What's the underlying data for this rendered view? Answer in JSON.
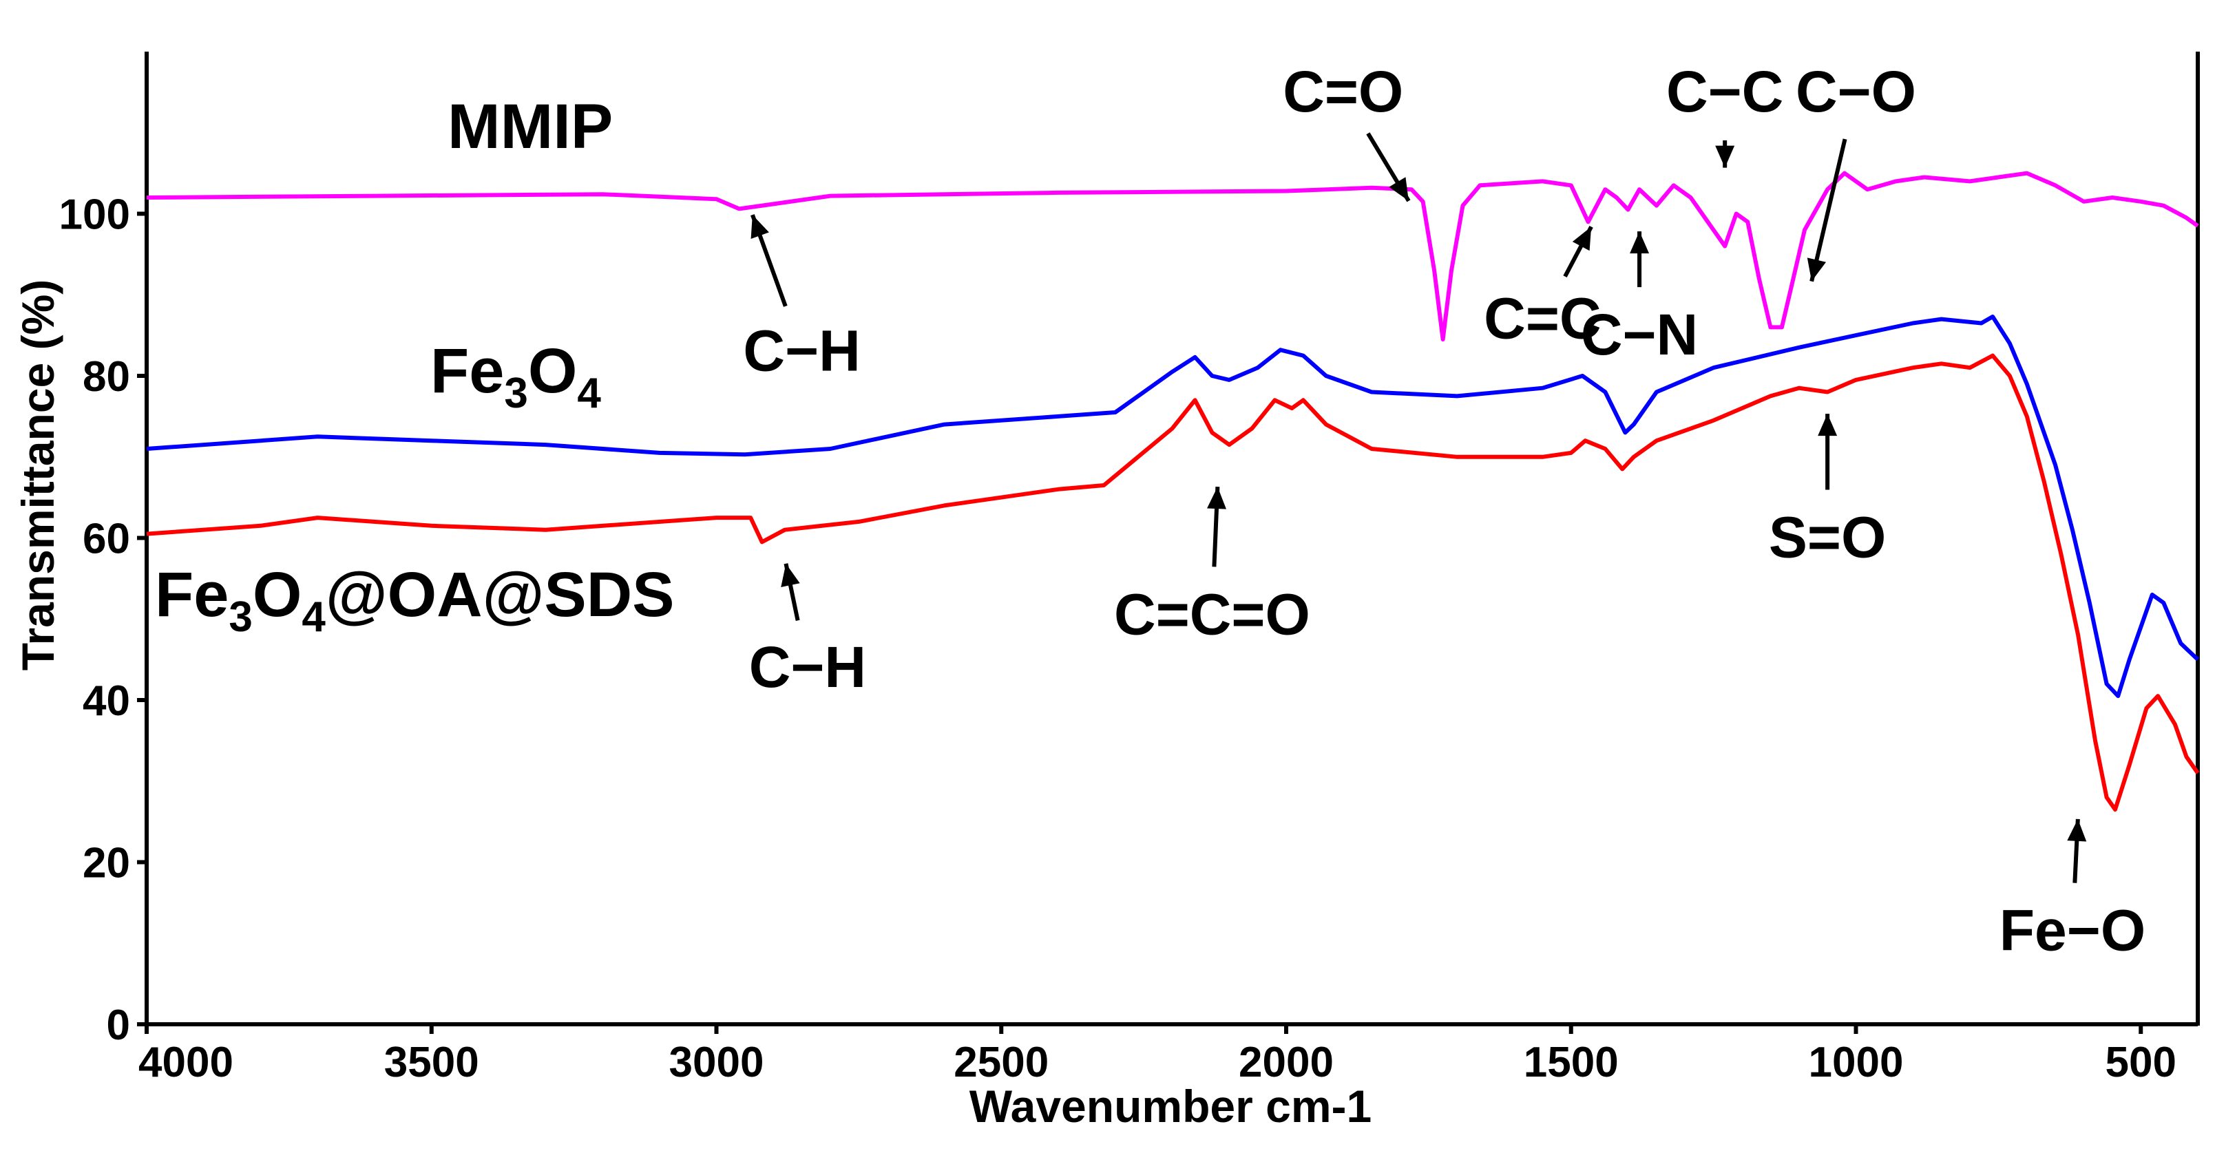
{
  "chart_data": {
    "type": "line",
    "title": "",
    "xlabel": "Wavenumber cm-1",
    "ylabel": "Transmittance (%)",
    "xlim": [
      4000,
      400
    ],
    "ylim": [
      0,
      120
    ],
    "x_ticks": [
      4000,
      3500,
      3000,
      2500,
      2000,
      1500,
      1000,
      500
    ],
    "y_ticks": [
      0,
      20,
      40,
      60,
      80,
      100
    ],
    "grid": false,
    "series": [
      {
        "name": "MMIP",
        "label_main": "MMIP",
        "color": "#ff00ff",
        "points": [
          [
            4000,
            102
          ],
          [
            3600,
            102.2
          ],
          [
            3200,
            102.4
          ],
          [
            3000,
            101.8
          ],
          [
            2960,
            100.6
          ],
          [
            2900,
            101.2
          ],
          [
            2800,
            102.2
          ],
          [
            2400,
            102.6
          ],
          [
            2000,
            102.8
          ],
          [
            1850,
            103.2
          ],
          [
            1780,
            103.0
          ],
          [
            1760,
            101.5
          ],
          [
            1740,
            93
          ],
          [
            1725,
            84.5
          ],
          [
            1710,
            93
          ],
          [
            1690,
            101
          ],
          [
            1660,
            103.5
          ],
          [
            1550,
            104
          ],
          [
            1500,
            103.5
          ],
          [
            1470,
            99
          ],
          [
            1440,
            103
          ],
          [
            1420,
            102
          ],
          [
            1400,
            100.5
          ],
          [
            1380,
            103
          ],
          [
            1350,
            101
          ],
          [
            1320,
            103.5
          ],
          [
            1290,
            102
          ],
          [
            1250,
            98
          ],
          [
            1230,
            96
          ],
          [
            1210,
            100
          ],
          [
            1190,
            99
          ],
          [
            1170,
            92
          ],
          [
            1150,
            86
          ],
          [
            1130,
            86
          ],
          [
            1110,
            92
          ],
          [
            1090,
            98
          ],
          [
            1050,
            103
          ],
          [
            1020,
            105
          ],
          [
            980,
            103
          ],
          [
            930,
            104
          ],
          [
            880,
            104.5
          ],
          [
            800,
            104
          ],
          [
            750,
            104.5
          ],
          [
            700,
            105
          ],
          [
            650,
            103.5
          ],
          [
            600,
            101.5
          ],
          [
            550,
            102
          ],
          [
            500,
            101.5
          ],
          [
            460,
            101
          ],
          [
            420,
            99.5
          ],
          [
            400,
            98.5
          ]
        ]
      },
      {
        "name": "Fe3O4",
        "label_main": "Fe",
        "label_sub1": "3",
        "label_mid": "O",
        "label_sub2": "4",
        "color": "#0000ff",
        "points": [
          [
            4000,
            71
          ],
          [
            3700,
            72.5
          ],
          [
            3500,
            72
          ],
          [
            3300,
            71.5
          ],
          [
            3100,
            70.5
          ],
          [
            2950,
            70.3
          ],
          [
            2800,
            71
          ],
          [
            2600,
            74
          ],
          [
            2400,
            75
          ],
          [
            2300,
            75.5
          ],
          [
            2200,
            80.5
          ],
          [
            2160,
            82.3
          ],
          [
            2130,
            80
          ],
          [
            2100,
            79.5
          ],
          [
            2050,
            81
          ],
          [
            2010,
            83.2
          ],
          [
            1970,
            82.5
          ],
          [
            1930,
            80
          ],
          [
            1850,
            78
          ],
          [
            1700,
            77.5
          ],
          [
            1550,
            78.5
          ],
          [
            1480,
            80
          ],
          [
            1440,
            78
          ],
          [
            1405,
            73
          ],
          [
            1390,
            74
          ],
          [
            1350,
            78
          ],
          [
            1250,
            81
          ],
          [
            1100,
            83.5
          ],
          [
            1000,
            85
          ],
          [
            900,
            86.5
          ],
          [
            850,
            87
          ],
          [
            780,
            86.5
          ],
          [
            760,
            87.3
          ],
          [
            730,
            84
          ],
          [
            700,
            79
          ],
          [
            650,
            69
          ],
          [
            620,
            61
          ],
          [
            590,
            52
          ],
          [
            560,
            42
          ],
          [
            540,
            40.5
          ],
          [
            520,
            45
          ],
          [
            480,
            53
          ],
          [
            460,
            52
          ],
          [
            430,
            47
          ],
          [
            400,
            45
          ]
        ]
      },
      {
        "name": "Fe3O4@OA@SDS",
        "label_main": "Fe",
        "label_sub1": "3",
        "label_mid": "O",
        "label_sub2": "4",
        "label_tail": "@OA@SDS",
        "color": "#ff0000",
        "points": [
          [
            4000,
            60.5
          ],
          [
            3800,
            61.5
          ],
          [
            3700,
            62.5
          ],
          [
            3500,
            61.5
          ],
          [
            3300,
            61
          ],
          [
            3000,
            62.5
          ],
          [
            2940,
            62.5
          ],
          [
            2920,
            59.5
          ],
          [
            2880,
            61
          ],
          [
            2750,
            62
          ],
          [
            2600,
            64
          ],
          [
            2400,
            66
          ],
          [
            2320,
            66.5
          ],
          [
            2200,
            73.5
          ],
          [
            2160,
            77
          ],
          [
            2130,
            73
          ],
          [
            2100,
            71.5
          ],
          [
            2060,
            73.5
          ],
          [
            2020,
            77
          ],
          [
            1990,
            76
          ],
          [
            1970,
            77
          ],
          [
            1930,
            74
          ],
          [
            1850,
            71
          ],
          [
            1700,
            70
          ],
          [
            1550,
            70
          ],
          [
            1500,
            70.5
          ],
          [
            1475,
            72
          ],
          [
            1440,
            71
          ],
          [
            1410,
            68.5
          ],
          [
            1390,
            70
          ],
          [
            1350,
            72
          ],
          [
            1250,
            74.5
          ],
          [
            1150,
            77.5
          ],
          [
            1100,
            78.5
          ],
          [
            1050,
            78
          ],
          [
            1000,
            79.5
          ],
          [
            900,
            81
          ],
          [
            850,
            81.5
          ],
          [
            800,
            81
          ],
          [
            760,
            82.5
          ],
          [
            730,
            80
          ],
          [
            700,
            75
          ],
          [
            670,
            67
          ],
          [
            640,
            58
          ],
          [
            610,
            48
          ],
          [
            580,
            35
          ],
          [
            560,
            28
          ],
          [
            545,
            26.5
          ],
          [
            520,
            32
          ],
          [
            490,
            39
          ],
          [
            470,
            40.5
          ],
          [
            440,
            37
          ],
          [
            420,
            33
          ],
          [
            400,
            31
          ]
        ]
      }
    ],
    "annotations": [
      {
        "id": "ch-mmip",
        "text": "C−H",
        "peak": [
          2940,
          100.5
        ],
        "label_at": [
          2850,
          83
        ]
      },
      {
        "id": "co-double",
        "text": "C=O",
        "peak": [
          1780,
          101
        ],
        "label_at": [
          1900,
          115
        ]
      },
      {
        "id": "cc-double",
        "text": "C=C",
        "peak": [
          1460,
          99
        ],
        "label_at": [
          1550,
          87
        ]
      },
      {
        "id": "cn",
        "text": "C−N",
        "peak": [
          1380,
          98.5
        ],
        "label_at": [
          1380,
          85
        ]
      },
      {
        "id": "cc-single",
        "text": "C−C",
        "peak": [
          1230,
          105
        ],
        "label_at": [
          1230,
          115
        ]
      },
      {
        "id": "co-single",
        "text": "C−O",
        "peak": [
          1080,
          91
        ],
        "label_at": [
          1000,
          115
        ]
      },
      {
        "id": "cco",
        "text": "C=C=O",
        "peak": [
          2120,
          67
        ],
        "label_at": [
          2130,
          50.5
        ]
      },
      {
        "id": "so",
        "text": "S=O",
        "peak": [
          1050,
          76
        ],
        "label_at": [
          1050,
          60
        ]
      },
      {
        "id": "ch-sds",
        "text": "C−H",
        "peak": [
          2880,
          57.5
        ],
        "label_at": [
          2840,
          44
        ]
      },
      {
        "id": "feo",
        "text": "Fe−O",
        "peak": [
          610,
          26
        ],
        "label_at": [
          620,
          11.5
        ]
      }
    ]
  }
}
